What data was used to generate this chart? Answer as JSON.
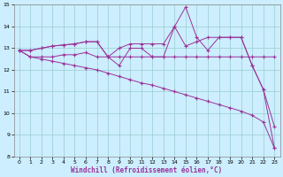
{
  "x": [
    0,
    1,
    2,
    3,
    4,
    5,
    6,
    7,
    8,
    9,
    10,
    11,
    12,
    13,
    14,
    15,
    16,
    17,
    18,
    19,
    20,
    21,
    22,
    23
  ],
  "line_flat": [
    12.9,
    12.6,
    12.6,
    12.6,
    12.7,
    12.7,
    12.8,
    12.6,
    12.6,
    12.6,
    12.6,
    12.6,
    12.6,
    12.6,
    12.6,
    12.6,
    12.6,
    12.6,
    12.6,
    12.6,
    12.6,
    12.6,
    12.6,
    12.6
  ],
  "line_diag": [
    12.9,
    12.6,
    12.5,
    12.4,
    12.3,
    12.2,
    12.1,
    12.0,
    11.85,
    11.7,
    11.55,
    11.4,
    11.3,
    11.15,
    11.0,
    10.85,
    10.7,
    10.55,
    10.4,
    10.25,
    10.1,
    9.9,
    9.6,
    8.4
  ],
  "line_upper": [
    12.9,
    12.9,
    13.0,
    13.1,
    13.15,
    13.2,
    13.3,
    13.3,
    12.6,
    13.0,
    13.2,
    13.2,
    13.2,
    13.2,
    14.0,
    13.1,
    13.3,
    13.5,
    13.5,
    13.5,
    13.5,
    12.2,
    11.1,
    9.4
  ],
  "line_zigzag": [
    12.9,
    12.9,
    13.0,
    13.1,
    13.15,
    13.2,
    13.3,
    13.3,
    12.6,
    12.2,
    13.0,
    13.0,
    12.6,
    12.6,
    14.0,
    14.9,
    13.5,
    12.9,
    13.5,
    13.5,
    13.5,
    12.2,
    11.1,
    8.4
  ],
  "bg_color": "#cceeff",
  "line_color": "#993399",
  "grid_color": "#99cccc",
  "xlabel": "Windchill (Refroidissement éolien,°C)",
  "ylim": [
    8,
    15
  ],
  "xlim": [
    -0.5,
    23.5
  ],
  "yticks": [
    8,
    9,
    10,
    11,
    12,
    13,
    14,
    15
  ],
  "xticks": [
    0,
    1,
    2,
    3,
    4,
    5,
    6,
    7,
    8,
    9,
    10,
    11,
    12,
    13,
    14,
    15,
    16,
    17,
    18,
    19,
    20,
    21,
    22,
    23
  ]
}
